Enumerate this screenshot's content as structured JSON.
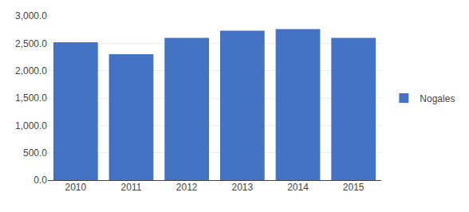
{
  "chart_data": {
    "type": "bar",
    "categories": [
      "2010",
      "2011",
      "2012",
      "2013",
      "2014",
      "2015"
    ],
    "series": [
      {
        "name": "Nogales",
        "color": "#4472C4",
        "values": [
          2520,
          2300,
          2600,
          2730,
          2760,
          2600
        ]
      }
    ],
    "ylim": [
      0,
      3000
    ],
    "yticks": [
      {
        "value": 0,
        "label": "0.0"
      },
      {
        "value": 500,
        "label": "500.0"
      },
      {
        "value": 1000,
        "label": "1,000.0"
      },
      {
        "value": 1500,
        "label": "1,500.0"
      },
      {
        "value": 2000,
        "label": "2,000.0"
      },
      {
        "value": 2500,
        "label": "2,500.0"
      },
      {
        "value": 3000,
        "label": "3,000.0"
      }
    ],
    "grid": true,
    "legend": "right"
  }
}
